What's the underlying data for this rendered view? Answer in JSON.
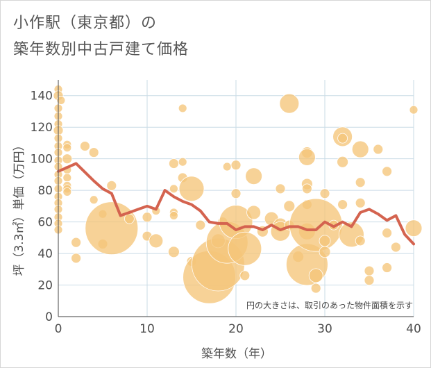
{
  "title_line1": "小作駅（東京都）の",
  "title_line2": "築年数別中古戸建て価格",
  "chart_data": {
    "type": "scatter",
    "xlabel": "築年数（年）",
    "ylabel": "坪（3.3㎡）単価（万円）",
    "xlim": [
      0,
      40
    ],
    "ylim": [
      0,
      150
    ],
    "xticks": [
      0,
      10,
      20,
      30,
      40
    ],
    "yticks": [
      0,
      20,
      40,
      60,
      80,
      100,
      120,
      140
    ],
    "grid": true,
    "note": "円の大きさは、取引のあった物件面積を示す",
    "bubble_color": "#f5c57a",
    "line_color": "#d4634f",
    "bubbles": [
      {
        "x": 0,
        "y": 144,
        "s": 6
      },
      {
        "x": 0,
        "y": 140,
        "s": 7
      },
      {
        "x": 0.3,
        "y": 137,
        "s": 6
      },
      {
        "x": 0,
        "y": 132,
        "s": 6
      },
      {
        "x": 0,
        "y": 127,
        "s": 6
      },
      {
        "x": 0,
        "y": 122,
        "s": 6
      },
      {
        "x": 0,
        "y": 118,
        "s": 7
      },
      {
        "x": 0,
        "y": 113,
        "s": 6
      },
      {
        "x": 0,
        "y": 108,
        "s": 6
      },
      {
        "x": 0,
        "y": 104,
        "s": 6
      },
      {
        "x": 0,
        "y": 99,
        "s": 6
      },
      {
        "x": 0,
        "y": 95,
        "s": 6
      },
      {
        "x": 0,
        "y": 90,
        "s": 6
      },
      {
        "x": 0,
        "y": 86,
        "s": 6
      },
      {
        "x": 0,
        "y": 81,
        "s": 6
      },
      {
        "x": 0,
        "y": 76,
        "s": 6
      },
      {
        "x": 0,
        "y": 72,
        "s": 6
      },
      {
        "x": 0,
        "y": 68,
        "s": 6
      },
      {
        "x": 0,
        "y": 63,
        "s": 6
      },
      {
        "x": 0,
        "y": 59,
        "s": 6
      },
      {
        "x": 0,
        "y": 55,
        "s": 6
      },
      {
        "x": 1,
        "y": 109,
        "s": 6
      },
      {
        "x": 1,
        "y": 107,
        "s": 6
      },
      {
        "x": 1,
        "y": 100,
        "s": 7
      },
      {
        "x": 1,
        "y": 93,
        "s": 6
      },
      {
        "x": 1,
        "y": 88,
        "s": 6
      },
      {
        "x": 1,
        "y": 83,
        "s": 6
      },
      {
        "x": 1,
        "y": 81,
        "s": 6
      },
      {
        "x": 1,
        "y": 79,
        "s": 6
      },
      {
        "x": 2,
        "y": 47,
        "s": 7
      },
      {
        "x": 2,
        "y": 37,
        "s": 7
      },
      {
        "x": 3,
        "y": 108,
        "s": 7
      },
      {
        "x": 4,
        "y": 104,
        "s": 7
      },
      {
        "x": 4,
        "y": 74,
        "s": 6
      },
      {
        "x": 5,
        "y": 65,
        "s": 6
      },
      {
        "x": 5,
        "y": 46,
        "s": 7
      },
      {
        "x": 6,
        "y": 56,
        "s": 38
      },
      {
        "x": 6,
        "y": 83,
        "s": 7
      },
      {
        "x": 8,
        "y": 62,
        "s": 7
      },
      {
        "x": 10,
        "y": 63,
        "s": 7
      },
      {
        "x": 10,
        "y": 51,
        "s": 7
      },
      {
        "x": 11,
        "y": 48,
        "s": 10
      },
      {
        "x": 11,
        "y": 67,
        "s": 6
      },
      {
        "x": 13,
        "y": 97,
        "s": 7
      },
      {
        "x": 13,
        "y": 81,
        "s": 6
      },
      {
        "x": 13,
        "y": 66,
        "s": 6
      },
      {
        "x": 13,
        "y": 64,
        "s": 6
      },
      {
        "x": 13,
        "y": 41,
        "s": 8
      },
      {
        "x": 14,
        "y": 132,
        "s": 6
      },
      {
        "x": 14,
        "y": 98,
        "s": 6
      },
      {
        "x": 14,
        "y": 88,
        "s": 7
      },
      {
        "x": 15,
        "y": 81,
        "s": 18
      },
      {
        "x": 15,
        "y": 35,
        "s": 7
      },
      {
        "x": 16,
        "y": 58,
        "s": 7
      },
      {
        "x": 17,
        "y": 25,
        "s": 38
      },
      {
        "x": 18,
        "y": 33,
        "s": 38
      },
      {
        "x": 18,
        "y": 48,
        "s": 10
      },
      {
        "x": 18.5,
        "y": 60,
        "s": 7
      },
      {
        "x": 19,
        "y": 95,
        "s": 6
      },
      {
        "x": 19,
        "y": 47,
        "s": 30
      },
      {
        "x": 20,
        "y": 96,
        "s": 7
      },
      {
        "x": 20,
        "y": 78,
        "s": 7
      },
      {
        "x": 20,
        "y": 60,
        "s": 24
      },
      {
        "x": 21,
        "y": 26,
        "s": 7
      },
      {
        "x": 21,
        "y": 43,
        "s": 24
      },
      {
        "x": 22,
        "y": 89,
        "s": 12
      },
      {
        "x": 22,
        "y": 66,
        "s": 10
      },
      {
        "x": 23,
        "y": 54,
        "s": 8
      },
      {
        "x": 24,
        "y": 62,
        "s": 10
      },
      {
        "x": 25,
        "y": 81,
        "s": 7
      },
      {
        "x": 25,
        "y": 58,
        "s": 10
      },
      {
        "x": 25,
        "y": 54,
        "s": 14
      },
      {
        "x": 26,
        "y": 135,
        "s": 14
      },
      {
        "x": 26,
        "y": 70,
        "s": 8
      },
      {
        "x": 26,
        "y": 58,
        "s": 7
      },
      {
        "x": 27,
        "y": 38,
        "s": 8
      },
      {
        "x": 28,
        "y": 104,
        "s": 8
      },
      {
        "x": 28,
        "y": 101,
        "s": 12
      },
      {
        "x": 28,
        "y": 84,
        "s": 8
      },
      {
        "x": 28,
        "y": 81,
        "s": 7
      },
      {
        "x": 28,
        "y": 71,
        "s": 7
      },
      {
        "x": 28,
        "y": 54,
        "s": 12
      },
      {
        "x": 28,
        "y": 33,
        "s": 30
      },
      {
        "x": 29,
        "y": 58,
        "s": 38
      },
      {
        "x": 29,
        "y": 26,
        "s": 10
      },
      {
        "x": 29,
        "y": 18,
        "s": 7
      },
      {
        "x": 30,
        "y": 78,
        "s": 7
      },
      {
        "x": 30,
        "y": 48,
        "s": 8
      },
      {
        "x": 30,
        "y": 41,
        "s": 8
      },
      {
        "x": 31,
        "y": 58,
        "s": 7
      },
      {
        "x": 32,
        "y": 114,
        "s": 14
      },
      {
        "x": 32,
        "y": 113,
        "s": 7
      },
      {
        "x": 32,
        "y": 98,
        "s": 8
      },
      {
        "x": 32,
        "y": 71,
        "s": 7
      },
      {
        "x": 33,
        "y": 52,
        "s": 18
      },
      {
        "x": 34,
        "y": 106,
        "s": 12
      },
      {
        "x": 34,
        "y": 85,
        "s": 7
      },
      {
        "x": 34,
        "y": 72,
        "s": 7
      },
      {
        "x": 34,
        "y": 48,
        "s": 7
      },
      {
        "x": 35,
        "y": 29,
        "s": 7
      },
      {
        "x": 35,
        "y": 23,
        "s": 7
      },
      {
        "x": 36,
        "y": 106,
        "s": 7
      },
      {
        "x": 37,
        "y": 92,
        "s": 7
      },
      {
        "x": 37,
        "y": 53,
        "s": 7
      },
      {
        "x": 37,
        "y": 31,
        "s": 7
      },
      {
        "x": 38,
        "y": 44,
        "s": 7
      },
      {
        "x": 40,
        "y": 131,
        "s": 6
      },
      {
        "x": 40,
        "y": 56,
        "s": 12
      }
    ],
    "series": [
      {
        "x": [
          0,
          2,
          4,
          5,
          6,
          7,
          8,
          9,
          10,
          11,
          12,
          13,
          14,
          15,
          16,
          17,
          18,
          19,
          20,
          21,
          22,
          23,
          24,
          25,
          26,
          27,
          28,
          29,
          30,
          31,
          32,
          33,
          34,
          35,
          36,
          37,
          38,
          39,
          40
        ],
        "y": [
          92,
          97,
          86,
          81,
          78,
          64,
          66,
          68,
          70,
          68,
          80,
          76,
          73,
          71,
          67,
          60,
          59,
          59,
          55,
          57,
          57,
          55,
          58,
          55,
          57,
          57,
          55,
          55,
          60,
          57,
          60,
          57,
          66,
          68,
          65,
          61,
          64,
          52,
          46
        ]
      }
    ]
  }
}
